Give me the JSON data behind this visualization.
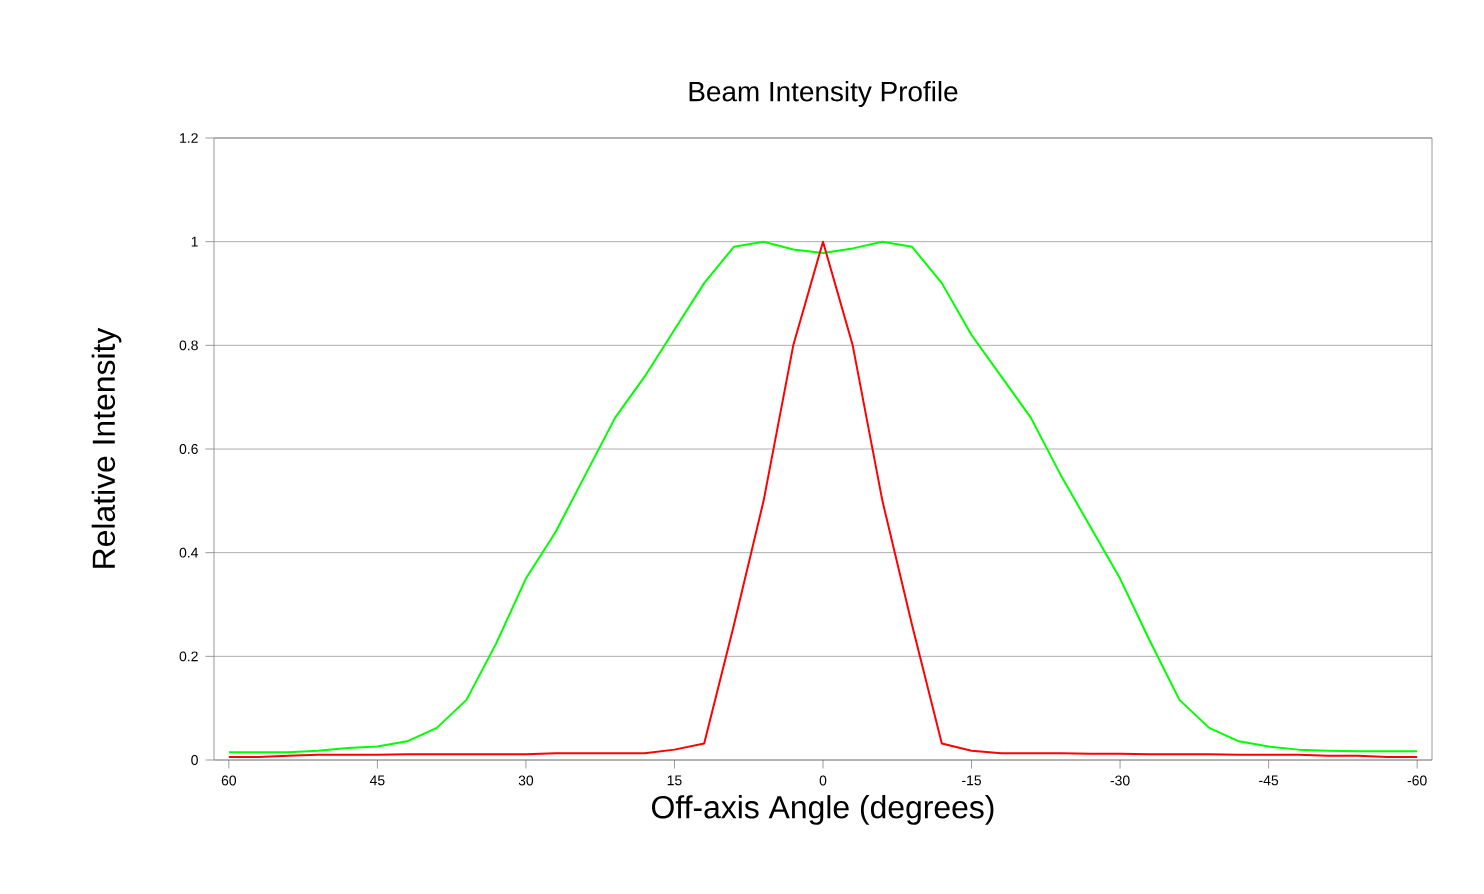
{
  "chart_data": {
    "type": "line",
    "title": "Beam Intensity Profile",
    "xlabel": "Off-axis Angle (degrees)",
    "ylabel": "Relative Intensity",
    "x": [
      60,
      57,
      54,
      51,
      48,
      45,
      42,
      39,
      36,
      33,
      30,
      27,
      24,
      21,
      18,
      15,
      12,
      9,
      6,
      3,
      0,
      -3,
      -6,
      -9,
      -12,
      -15,
      -18,
      -21,
      -24,
      -27,
      -30,
      -33,
      -36,
      -39,
      -42,
      -45,
      -48,
      -51,
      -54,
      -57,
      -60
    ],
    "series": [
      {
        "color": "#00ff00",
        "values": [
          0.015,
          0.015,
          0.015,
          0.018,
          0.023,
          0.026,
          0.036,
          0.062,
          0.116,
          0.225,
          0.35,
          0.44,
          0.55,
          0.66,
          0.74,
          0.83,
          0.92,
          0.99,
          1.0,
          0.985,
          0.978,
          0.987,
          1.0,
          0.99,
          0.92,
          0.82,
          0.74,
          0.66,
          0.55,
          0.45,
          0.35,
          0.23,
          0.116,
          0.062,
          0.036,
          0.026,
          0.02,
          0.018,
          0.017,
          0.017,
          0.017
        ]
      },
      {
        "color": "#ff0000",
        "values": [
          0.006,
          0.006,
          0.008,
          0.01,
          0.01,
          0.01,
          0.011,
          0.011,
          0.011,
          0.011,
          0.011,
          0.013,
          0.013,
          0.013,
          0.013,
          0.02,
          0.032,
          0.26,
          0.5,
          0.8,
          1.0,
          0.8,
          0.5,
          0.26,
          0.032,
          0.018,
          0.013,
          0.013,
          0.013,
          0.012,
          0.012,
          0.011,
          0.011,
          0.011,
          0.01,
          0.01,
          0.01,
          0.008,
          0.008,
          0.006,
          0.006
        ]
      }
    ],
    "xlim": [
      61.5,
      -61.5
    ],
    "xticks": [
      60,
      45,
      30,
      15,
      0,
      -15,
      -30,
      -45,
      -60
    ],
    "ylim": [
      0,
      1.2
    ],
    "yticks": [
      0,
      0.2,
      0.4,
      0.6,
      0.8,
      1,
      1.2
    ],
    "grid": "y",
    "marker": "none",
    "line_style": "solid"
  }
}
